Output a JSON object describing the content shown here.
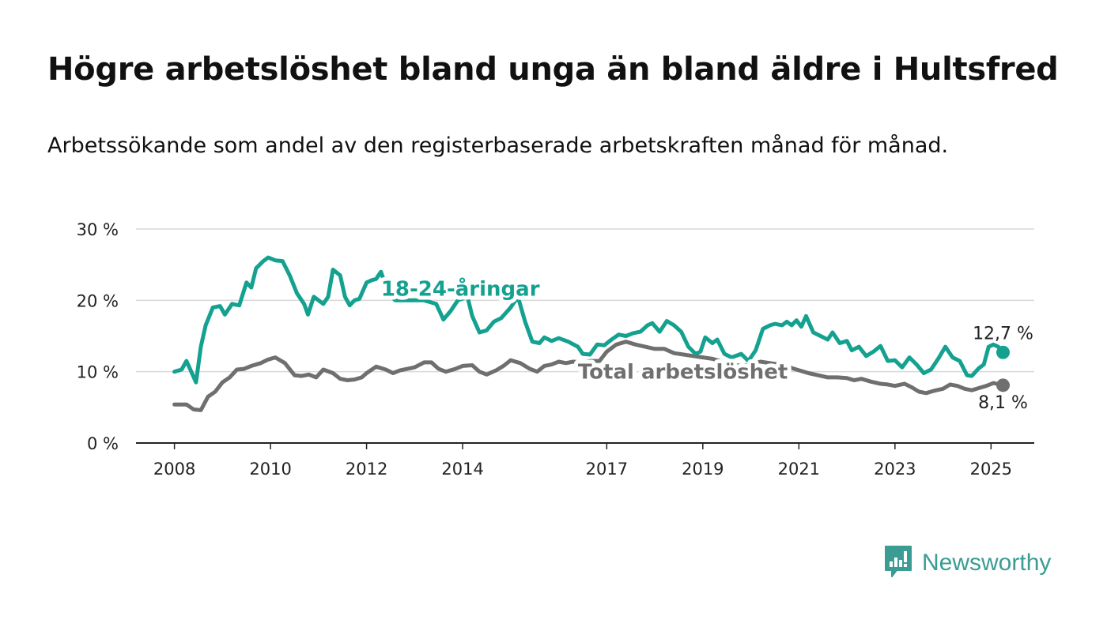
{
  "title": "Högre arbetslöshet bland unga än bland äldre i Hultsfred",
  "subtitle": "Arbetssökande som andel av den registerbaserade arbetskraften månad för månad.",
  "brand": {
    "name": "Newsworthy"
  },
  "colors": {
    "youth": "#14a190",
    "total": "#6f6f6f",
    "grid": "#d9d9d9",
    "axis": "#222222",
    "brand": "#3a9c93"
  },
  "chart_data": {
    "type": "line",
    "y_tick_labels": [
      "0 %",
      "10 %",
      "20 %",
      "30 %"
    ],
    "y_ticks": [
      0,
      10,
      20,
      30
    ],
    "ylim": [
      0,
      30
    ],
    "x_tick_labels": [
      "2008",
      "2010",
      "2012",
      "2014",
      "2017",
      "2019",
      "2021",
      "2023",
      "2025"
    ],
    "x_ticks": [
      2008,
      2010,
      2012,
      2014,
      2017,
      2019,
      2021,
      2023,
      2025
    ],
    "xlim": [
      2007.2,
      2025.9
    ],
    "grid": true,
    "series": [
      {
        "name": "18-24-åringar",
        "color": "#14a190",
        "end_label": "12,7 %",
        "points": [
          [
            2008.0,
            10.0
          ],
          [
            2008.15,
            10.3
          ],
          [
            2008.25,
            11.5
          ],
          [
            2008.35,
            10.0
          ],
          [
            2008.45,
            8.5
          ],
          [
            2008.55,
            13.5
          ],
          [
            2008.65,
            16.5
          ],
          [
            2008.8,
            19.0
          ],
          [
            2008.95,
            19.2
          ],
          [
            2009.05,
            18.0
          ],
          [
            2009.2,
            19.5
          ],
          [
            2009.35,
            19.3
          ],
          [
            2009.5,
            22.5
          ],
          [
            2009.6,
            21.8
          ],
          [
            2009.7,
            24.5
          ],
          [
            2009.85,
            25.5
          ],
          [
            2009.95,
            26.0
          ],
          [
            2010.1,
            25.6
          ],
          [
            2010.25,
            25.5
          ],
          [
            2010.4,
            23.5
          ],
          [
            2010.55,
            21.0
          ],
          [
            2010.7,
            19.5
          ],
          [
            2010.78,
            18.0
          ],
          [
            2010.9,
            20.5
          ],
          [
            2011.0,
            20.0
          ],
          [
            2011.1,
            19.5
          ],
          [
            2011.2,
            20.5
          ],
          [
            2011.3,
            24.3
          ],
          [
            2011.45,
            23.5
          ],
          [
            2011.55,
            20.5
          ],
          [
            2011.65,
            19.3
          ],
          [
            2011.75,
            20.0
          ],
          [
            2011.85,
            20.2
          ],
          [
            2012.0,
            22.5
          ],
          [
            2012.1,
            22.8
          ],
          [
            2012.2,
            23.0
          ],
          [
            2012.3,
            24.0
          ],
          [
            2012.45,
            21.0
          ],
          [
            2012.6,
            20.0
          ],
          [
            2012.8,
            20.0
          ],
          [
            2013.0,
            20.0
          ],
          [
            2013.2,
            20.0
          ],
          [
            2013.45,
            19.5
          ],
          [
            2013.6,
            17.3
          ],
          [
            2013.75,
            18.5
          ],
          [
            2013.9,
            20.0
          ],
          [
            2014.1,
            20.5
          ],
          [
            2014.2,
            17.8
          ],
          [
            2014.35,
            15.5
          ],
          [
            2014.5,
            15.8
          ],
          [
            2014.65,
            17.0
          ],
          [
            2014.8,
            17.5
          ],
          [
            2015.0,
            19.0
          ],
          [
            2015.15,
            20.5
          ],
          [
            2015.3,
            17.0
          ],
          [
            2015.45,
            14.2
          ],
          [
            2015.6,
            14.0
          ],
          [
            2015.7,
            14.8
          ],
          [
            2015.85,
            14.3
          ],
          [
            2016.0,
            14.7
          ],
          [
            2016.2,
            14.2
          ],
          [
            2016.4,
            13.5
          ],
          [
            2016.5,
            12.5
          ],
          [
            2016.65,
            12.4
          ],
          [
            2016.8,
            13.8
          ],
          [
            2016.95,
            13.7
          ],
          [
            2017.1,
            14.5
          ],
          [
            2017.25,
            15.2
          ],
          [
            2017.4,
            15.0
          ],
          [
            2017.55,
            15.4
          ],
          [
            2017.7,
            15.6
          ],
          [
            2017.85,
            16.5
          ],
          [
            2017.95,
            16.8
          ],
          [
            2018.1,
            15.6
          ],
          [
            2018.25,
            17.1
          ],
          [
            2018.4,
            16.5
          ],
          [
            2018.55,
            15.6
          ],
          [
            2018.7,
            13.5
          ],
          [
            2018.85,
            12.5
          ],
          [
            2018.95,
            12.8
          ],
          [
            2019.05,
            14.8
          ],
          [
            2019.2,
            14.0
          ],
          [
            2019.3,
            14.5
          ],
          [
            2019.45,
            12.5
          ],
          [
            2019.6,
            12.0
          ],
          [
            2019.8,
            12.5
          ],
          [
            2019.95,
            11.5
          ],
          [
            2020.1,
            13.0
          ],
          [
            2020.25,
            16.0
          ],
          [
            2020.4,
            16.5
          ],
          [
            2020.5,
            16.7
          ],
          [
            2020.65,
            16.5
          ],
          [
            2020.75,
            17.0
          ],
          [
            2020.85,
            16.5
          ],
          [
            2020.95,
            17.2
          ],
          [
            2021.05,
            16.3
          ],
          [
            2021.15,
            17.8
          ],
          [
            2021.3,
            15.5
          ],
          [
            2021.45,
            15.0
          ],
          [
            2021.6,
            14.5
          ],
          [
            2021.7,
            15.5
          ],
          [
            2021.85,
            14.0
          ],
          [
            2022.0,
            14.3
          ],
          [
            2022.1,
            13.0
          ],
          [
            2022.25,
            13.5
          ],
          [
            2022.4,
            12.2
          ],
          [
            2022.55,
            12.8
          ],
          [
            2022.7,
            13.6
          ],
          [
            2022.85,
            11.5
          ],
          [
            2023.0,
            11.6
          ],
          [
            2023.15,
            10.6
          ],
          [
            2023.3,
            12.0
          ],
          [
            2023.45,
            11.0
          ],
          [
            2023.6,
            9.8
          ],
          [
            2023.75,
            10.3
          ],
          [
            2023.9,
            11.8
          ],
          [
            2024.05,
            13.5
          ],
          [
            2024.2,
            12.0
          ],
          [
            2024.35,
            11.5
          ],
          [
            2024.5,
            9.5
          ],
          [
            2024.6,
            9.4
          ],
          [
            2024.75,
            10.5
          ],
          [
            2024.85,
            11.0
          ],
          [
            2024.95,
            13.5
          ],
          [
            2025.05,
            13.8
          ],
          [
            2025.15,
            13.5
          ],
          [
            2025.25,
            12.7
          ]
        ]
      },
      {
        "name": "Total arbetslöshet",
        "color": "#6f6f6f",
        "end_label": "8,1 %",
        "points": [
          [
            2008.0,
            5.4
          ],
          [
            2008.25,
            5.4
          ],
          [
            2008.4,
            4.7
          ],
          [
            2008.55,
            4.6
          ],
          [
            2008.7,
            6.5
          ],
          [
            2008.85,
            7.2
          ],
          [
            2009.0,
            8.5
          ],
          [
            2009.15,
            9.2
          ],
          [
            2009.3,
            10.3
          ],
          [
            2009.45,
            10.4
          ],
          [
            2009.6,
            10.8
          ],
          [
            2009.8,
            11.2
          ],
          [
            2009.95,
            11.7
          ],
          [
            2010.1,
            12.0
          ],
          [
            2010.3,
            11.2
          ],
          [
            2010.5,
            9.5
          ],
          [
            2010.65,
            9.4
          ],
          [
            2010.8,
            9.6
          ],
          [
            2010.95,
            9.2
          ],
          [
            2011.1,
            10.3
          ],
          [
            2011.3,
            9.8
          ],
          [
            2011.45,
            9.0
          ],
          [
            2011.6,
            8.8
          ],
          [
            2011.75,
            8.9
          ],
          [
            2011.9,
            9.2
          ],
          [
            2012.0,
            9.8
          ],
          [
            2012.2,
            10.7
          ],
          [
            2012.4,
            10.3
          ],
          [
            2012.55,
            9.8
          ],
          [
            2012.7,
            10.2
          ],
          [
            2012.85,
            10.4
          ],
          [
            2013.0,
            10.6
          ],
          [
            2013.2,
            11.3
          ],
          [
            2013.35,
            11.3
          ],
          [
            2013.5,
            10.4
          ],
          [
            2013.65,
            10.0
          ],
          [
            2013.85,
            10.4
          ],
          [
            2014.0,
            10.8
          ],
          [
            2014.2,
            10.9
          ],
          [
            2014.35,
            10.0
          ],
          [
            2014.5,
            9.6
          ],
          [
            2014.7,
            10.2
          ],
          [
            2014.85,
            10.8
          ],
          [
            2015.0,
            11.6
          ],
          [
            2015.2,
            11.2
          ],
          [
            2015.4,
            10.4
          ],
          [
            2015.55,
            10.0
          ],
          [
            2015.7,
            10.8
          ],
          [
            2015.85,
            11.0
          ],
          [
            2016.0,
            11.4
          ],
          [
            2016.15,
            11.2
          ],
          [
            2016.3,
            11.4
          ],
          [
            2016.5,
            11.3
          ],
          [
            2016.65,
            11.5
          ],
          [
            2016.85,
            11.5
          ],
          [
            2017.0,
            12.8
          ],
          [
            2017.2,
            13.8
          ],
          [
            2017.4,
            14.2
          ],
          [
            2017.6,
            13.8
          ],
          [
            2017.8,
            13.5
          ],
          [
            2018.0,
            13.2
          ],
          [
            2018.2,
            13.2
          ],
          [
            2018.4,
            12.6
          ],
          [
            2018.6,
            12.4
          ],
          [
            2018.8,
            12.2
          ],
          [
            2019.0,
            12.0
          ],
          [
            2019.2,
            11.8
          ],
          [
            2019.5,
            11.2
          ],
          [
            2019.8,
            10.8
          ],
          [
            2020.0,
            11.0
          ],
          [
            2020.2,
            11.4
          ],
          [
            2020.4,
            11.2
          ],
          [
            2020.6,
            11.0
          ],
          [
            2020.8,
            10.6
          ],
          [
            2021.0,
            10.2
          ],
          [
            2021.2,
            9.8
          ],
          [
            2021.4,
            9.5
          ],
          [
            2021.6,
            9.2
          ],
          [
            2021.8,
            9.2
          ],
          [
            2022.0,
            9.1
          ],
          [
            2022.15,
            8.8
          ],
          [
            2022.3,
            9.0
          ],
          [
            2022.5,
            8.6
          ],
          [
            2022.7,
            8.3
          ],
          [
            2022.85,
            8.2
          ],
          [
            2023.0,
            8.0
          ],
          [
            2023.2,
            8.3
          ],
          [
            2023.35,
            7.8
          ],
          [
            2023.5,
            7.2
          ],
          [
            2023.65,
            7.0
          ],
          [
            2023.8,
            7.3
          ],
          [
            2024.0,
            7.6
          ],
          [
            2024.15,
            8.2
          ],
          [
            2024.3,
            8.0
          ],
          [
            2024.45,
            7.6
          ],
          [
            2024.6,
            7.4
          ],
          [
            2024.75,
            7.7
          ],
          [
            2024.9,
            8.0
          ],
          [
            2025.05,
            8.4
          ],
          [
            2025.25,
            8.1
          ]
        ]
      }
    ]
  }
}
